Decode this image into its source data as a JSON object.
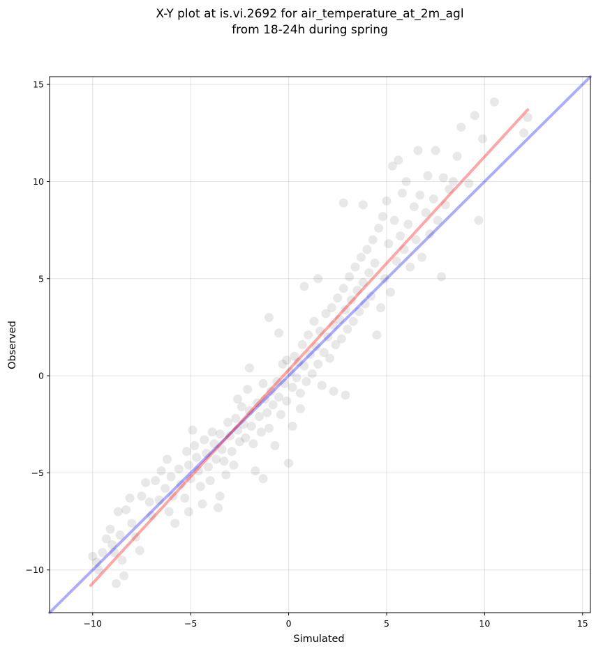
{
  "chart_data": {
    "type": "scatter",
    "title_lines": [
      "X-Y plot at is.vi.2692 for air_temperature_at_2m_agl",
      "from 18-24h during spring"
    ],
    "xlabel": "Simulated",
    "ylabel": "Observed",
    "xlim": [
      -12.2,
      15.4
    ],
    "ylim": [
      -12.2,
      15.4
    ],
    "xticks": [
      -10,
      -5,
      0,
      5,
      10,
      15
    ],
    "yticks": [
      -10,
      -5,
      0,
      5,
      10,
      15
    ],
    "xtick_labels": [
      "−10",
      "−5",
      "0",
      "5",
      "10",
      "15"
    ],
    "ytick_labels": [
      "−10",
      "−5",
      "0",
      "5",
      "10",
      "15"
    ],
    "grid": true,
    "point_color": "#000000",
    "point_alpha": 0.09,
    "lines": [
      {
        "kind": "one-to-one",
        "color": "#0000ff",
        "alpha": 0.33,
        "x": [
          -12.2,
          15.4
        ],
        "y": [
          -12.2,
          15.4
        ]
      },
      {
        "kind": "fit",
        "color": "#ff0000",
        "alpha": 0.35,
        "x": [
          -10.1,
          12.2
        ],
        "y": [
          -10.8,
          13.7
        ]
      }
    ],
    "points": [
      [
        -10.0,
        -9.3
      ],
      [
        -9.8,
        -9.6
      ],
      [
        -9.7,
        -10.0
      ],
      [
        -9.5,
        -9.1
      ],
      [
        -9.3,
        -8.4
      ],
      [
        -9.1,
        -7.9
      ],
      [
        -9.0,
        -8.7
      ],
      [
        -8.9,
        -9.1
      ],
      [
        -8.8,
        -10.7
      ],
      [
        -8.7,
        -7.0
      ],
      [
        -8.6,
        -8.2
      ],
      [
        -8.5,
        -9.5
      ],
      [
        -8.4,
        -10.3
      ],
      [
        -8.3,
        -6.9
      ],
      [
        -8.1,
        -6.3
      ],
      [
        -8.0,
        -7.6
      ],
      [
        -7.8,
        -8.3
      ],
      [
        -7.6,
        -9.0
      ],
      [
        -7.5,
        -6.2
      ],
      [
        -7.3,
        -5.5
      ],
      [
        -7.1,
        -6.5
      ],
      [
        -7.0,
        -7.2
      ],
      [
        -6.8,
        -5.4
      ],
      [
        -6.6,
        -6.4
      ],
      [
        -6.5,
        -4.9
      ],
      [
        -6.3,
        -5.8
      ],
      [
        -6.2,
        -4.3
      ],
      [
        -6.1,
        -7.0
      ],
      [
        -6.0,
        -5.2
      ],
      [
        -5.9,
        -6.2
      ],
      [
        -5.8,
        -7.6
      ],
      [
        -5.6,
        -4.8
      ],
      [
        -5.5,
        -5.6
      ],
      [
        -5.3,
        -6.3
      ],
      [
        -5.2,
        -3.9
      ],
      [
        -5.1,
        -4.6
      ],
      [
        -5.0,
        -5.3
      ],
      [
        -4.9,
        -2.8
      ],
      [
        -4.8,
        -3.6
      ],
      [
        -4.7,
        -4.2
      ],
      [
        -4.6,
        -4.9
      ],
      [
        -4.5,
        -5.7
      ],
      [
        -4.4,
        -6.6
      ],
      [
        -4.3,
        -3.3
      ],
      [
        -4.2,
        -4.0
      ],
      [
        -4.1,
        -4.7
      ],
      [
        -4.0,
        -5.4
      ],
      [
        -3.9,
        -2.9
      ],
      [
        -3.8,
        -3.5
      ],
      [
        -3.7,
        -4.3
      ],
      [
        -3.6,
        -6.8
      ],
      [
        -3.5,
        -3.0
      ],
      [
        -3.4,
        -3.8
      ],
      [
        -3.3,
        -4.4
      ],
      [
        -3.2,
        -5.1
      ],
      [
        -3.1,
        -2.4
      ],
      [
        -3.0,
        -3.1
      ],
      [
        -2.9,
        -3.9
      ],
      [
        -2.8,
        -4.6
      ],
      [
        -2.7,
        -2.2
      ],
      [
        -2.6,
        -2.8
      ],
      [
        -2.5,
        -3.4
      ],
      [
        -2.4,
        -1.6
      ],
      [
        -2.3,
        -2.5
      ],
      [
        -2.2,
        -3.2
      ],
      [
        -2.1,
        -0.7
      ],
      [
        -2.0,
        -1.8
      ],
      [
        -1.9,
        -2.6
      ],
      [
        -1.8,
        -3.5
      ],
      [
        -1.7,
        -4.9
      ],
      [
        -1.6,
        -1.4
      ],
      [
        -1.5,
        -2.1
      ],
      [
        -1.4,
        -2.9
      ],
      [
        -1.3,
        -0.4
      ],
      [
        -1.2,
        -1.2
      ],
      [
        -1.1,
        -1.9
      ],
      [
        -1.0,
        -2.7
      ],
      [
        -0.9,
        -0.8
      ],
      [
        -0.8,
        -1.5
      ],
      [
        -0.7,
        -3.6
      ],
      [
        -0.6,
        -0.3
      ],
      [
        -0.5,
        -1.1
      ],
      [
        -0.4,
        -2.0
      ],
      [
        -0.3,
        0.6
      ],
      [
        -0.2,
        -0.4
      ],
      [
        -0.1,
        -1.3
      ],
      [
        0.0,
        -4.5
      ],
      [
        0.1,
        0.2
      ],
      [
        0.2,
        -0.6
      ],
      [
        0.3,
        1.0
      ],
      [
        0.4,
        -0.1
      ],
      [
        0.5,
        0.7
      ],
      [
        0.6,
        -0.9
      ],
      [
        0.7,
        1.6
      ],
      [
        0.8,
        0.5
      ],
      [
        0.9,
        -0.3
      ],
      [
        1.0,
        2.1
      ],
      [
        1.1,
        1.1
      ],
      [
        1.2,
        0.1
      ],
      [
        1.3,
        2.8
      ],
      [
        1.4,
        1.5
      ],
      [
        1.5,
        0.6
      ],
      [
        1.6,
        2.3
      ],
      [
        1.7,
        -0.5
      ],
      [
        1.8,
        1.2
      ],
      [
        1.9,
        3.2
      ],
      [
        2.0,
        2.0
      ],
      [
        2.1,
        0.9
      ],
      [
        2.2,
        3.5
      ],
      [
        2.3,
        2.6
      ],
      [
        2.4,
        1.6
      ],
      [
        2.5,
        4.0
      ],
      [
        2.6,
        2.9
      ],
      [
        2.7,
        1.9
      ],
      [
        2.8,
        4.5
      ],
      [
        2.9,
        3.4
      ],
      [
        3.0,
        2.4
      ],
      [
        3.1,
        5.1
      ],
      [
        3.2,
        3.9
      ],
      [
        3.3,
        2.8
      ],
      [
        3.4,
        5.6
      ],
      [
        3.5,
        4.4
      ],
      [
        3.6,
        3.3
      ],
      [
        3.7,
        6.1
      ],
      [
        3.8,
        4.8
      ],
      [
        3.9,
        3.7
      ],
      [
        4.0,
        6.5
      ],
      [
        4.1,
        5.3
      ],
      [
        4.2,
        4.1
      ],
      [
        4.3,
        7.0
      ],
      [
        4.4,
        5.8
      ],
      [
        4.5,
        2.1
      ],
      [
        4.6,
        7.6
      ],
      [
        4.7,
        3.5
      ],
      [
        4.8,
        8.2
      ],
      [
        4.9,
        5.0
      ],
      [
        5.0,
        9.0
      ],
      [
        5.1,
        6.8
      ],
      [
        5.2,
        4.3
      ],
      [
        5.3,
        10.8
      ],
      [
        5.4,
        8.0
      ],
      [
        5.5,
        5.9
      ],
      [
        5.6,
        11.1
      ],
      [
        5.7,
        7.2
      ],
      [
        5.8,
        9.4
      ],
      [
        5.9,
        6.5
      ],
      [
        6.0,
        10.0
      ],
      [
        6.1,
        7.8
      ],
      [
        6.2,
        5.6
      ],
      [
        6.4,
        8.7
      ],
      [
        6.5,
        7.0
      ],
      [
        6.6,
        11.6
      ],
      [
        6.7,
        9.3
      ],
      [
        6.8,
        6.1
      ],
      [
        7.0,
        8.4
      ],
      [
        7.1,
        10.3
      ],
      [
        7.2,
        7.3
      ],
      [
        7.4,
        9.1
      ],
      [
        7.5,
        11.6
      ],
      [
        7.6,
        8.0
      ],
      [
        7.8,
        5.1
      ],
      [
        7.9,
        10.2
      ],
      [
        8.0,
        8.8
      ],
      [
        8.2,
        9.6
      ],
      [
        8.4,
        10.0
      ],
      [
        8.6,
        11.3
      ],
      [
        8.8,
        12.8
      ],
      [
        9.2,
        9.9
      ],
      [
        9.5,
        13.4
      ],
      [
        9.7,
        8.0
      ],
      [
        9.9,
        12.2
      ],
      [
        10.5,
        14.1
      ],
      [
        12.0,
        12.5
      ],
      [
        12.2,
        13.3
      ],
      [
        0.8,
        4.6
      ],
      [
        1.5,
        5.0
      ],
      [
        2.8,
        8.9
      ],
      [
        3.8,
        8.8
      ],
      [
        -2.0,
        0.4
      ],
      [
        -1.0,
        3.0
      ],
      [
        -0.5,
        2.2
      ],
      [
        0.6,
        -1.7
      ],
      [
        2.3,
        -0.8
      ],
      [
        2.9,
        -1.0
      ],
      [
        -1.3,
        -5.3
      ],
      [
        0.2,
        -2.6
      ],
      [
        -5.1,
        -7.0
      ],
      [
        -3.5,
        -6.2
      ],
      [
        -2.6,
        -1.2
      ],
      [
        -0.1,
        0.8
      ]
    ]
  }
}
